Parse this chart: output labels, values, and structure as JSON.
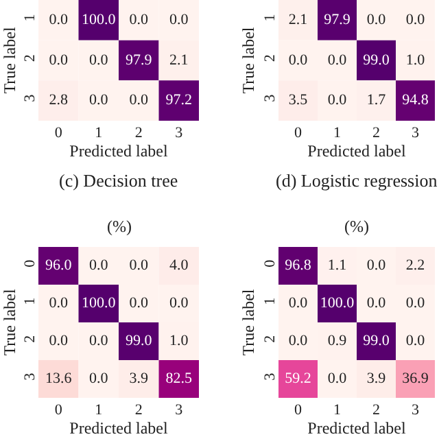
{
  "chart_data": [
    {
      "type": "heatmap",
      "annotations": [
        "(c) Decision tree"
      ],
      "xlabel": "Predicted label",
      "ylabel": "True label",
      "categories": [
        "0",
        "1",
        "2",
        "3"
      ],
      "y_categories": [
        "1",
        "2",
        "3"
      ],
      "cells": [
        [
          0.0,
          100.0,
          0.0,
          0.0
        ],
        [
          0.0,
          0.0,
          97.9,
          2.1
        ],
        [
          2.8,
          0.0,
          0.0,
          97.2
        ]
      ],
      "cell_labels": [
        [
          "0.0",
          "100.0",
          "0.0",
          "0.0"
        ],
        [
          "0.0",
          "0.0",
          "97.9",
          "2.1"
        ],
        [
          "2.8",
          "0.0",
          "0.0",
          "97.2"
        ]
      ]
    },
    {
      "type": "heatmap",
      "annotations": [
        "(d) Logistic regression"
      ],
      "xlabel": "Predicted label",
      "ylabel": "True label",
      "categories": [
        "0",
        "1",
        "2",
        "3"
      ],
      "y_categories": [
        "1",
        "2",
        "3"
      ],
      "cells": [
        [
          2.1,
          97.9,
          0.0,
          0.0
        ],
        [
          0.0,
          0.0,
          99.0,
          1.0
        ],
        [
          3.5,
          0.0,
          1.7,
          94.8
        ]
      ],
      "cell_labels": [
        [
          "2.1",
          "97.9",
          "0.0",
          "0.0"
        ],
        [
          "0.0",
          "0.0",
          "99.0",
          "1.0"
        ],
        [
          "3.5",
          "0.0",
          "1.7",
          "94.8"
        ]
      ]
    },
    {
      "type": "heatmap",
      "title": "(%)",
      "xlabel": "Predicted label",
      "ylabel": "True label",
      "categories": [
        "0",
        "1",
        "2",
        "3"
      ],
      "y_categories": [
        "0",
        "1",
        "2",
        "3"
      ],
      "cells": [
        [
          96.0,
          0.0,
          0.0,
          4.0
        ],
        [
          0.0,
          100.0,
          0.0,
          0.0
        ],
        [
          0.0,
          0.0,
          99.0,
          1.0
        ],
        [
          13.6,
          0.0,
          3.9,
          82.5
        ]
      ],
      "cell_labels": [
        [
          "96.0",
          "0.0",
          "0.0",
          "4.0"
        ],
        [
          "0.0",
          "100.0",
          "0.0",
          "0.0"
        ],
        [
          "0.0",
          "0.0",
          "99.0",
          "1.0"
        ],
        [
          "13.6",
          "0.0",
          "3.9",
          "82.5"
        ]
      ]
    },
    {
      "type": "heatmap",
      "title": "(%)",
      "xlabel": "Predicted label",
      "ylabel": "True label",
      "categories": [
        "0",
        "1",
        "2",
        "3"
      ],
      "y_categories": [
        "0",
        "1",
        "2",
        "3"
      ],
      "cells": [
        [
          96.8,
          1.1,
          0.0,
          2.2
        ],
        [
          0.0,
          100.0,
          0.0,
          0.0
        ],
        [
          0.0,
          0.9,
          99.0,
          0.0
        ],
        [
          59.2,
          0.0,
          3.9,
          36.9
        ]
      ],
      "cell_labels": [
        [
          "96.8",
          "1.1",
          "0.0",
          "2.2"
        ],
        [
          "0.0",
          "100.0",
          "0.0",
          "0.0"
        ],
        [
          "0.0",
          "0.9",
          "99.0",
          "0.0"
        ],
        [
          "59.2",
          "0.0",
          "3.9",
          "36.9"
        ]
      ]
    }
  ]
}
